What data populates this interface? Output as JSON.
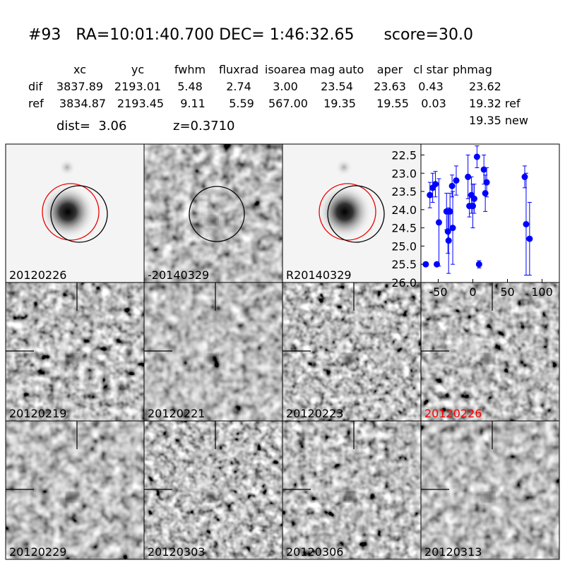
{
  "header": {
    "title": "#93   RA=10:01:40.700 DEC= 1:46:32.65      score=30.0"
  },
  "table": {
    "columns": [
      "xc",
      "yc",
      "fwhm",
      "fluxrad",
      "isoarea",
      "mag auto",
      "aper",
      "cl star",
      "phmag"
    ],
    "rows": [
      [
        "dif",
        "3837.89",
        "2193.01",
        "5.48",
        "2.74",
        "3.00",
        "23.54",
        "23.63",
        "0.43",
        "23.62"
      ],
      [
        "ref",
        "3834.87",
        "2193.45",
        "9.11",
        "5.59",
        "567.00",
        "19.35",
        "19.55",
        "0.03",
        "19.32 ref"
      ]
    ],
    "dist": "dist=  3.06",
    "z": "z=0.3710",
    "new": "19.35 new"
  },
  "panels": [
    {
      "label": "20120226",
      "color": "#000000",
      "kind": "ref"
    },
    {
      "label": "-20140329",
      "color": "#000000",
      "kind": "diff"
    },
    {
      "label": "R20140329",
      "color": "#000000",
      "kind": "ref"
    },
    {
      "label": "20120219",
      "color": "#000000",
      "kind": "noise"
    },
    {
      "label": "20120221",
      "color": "#000000",
      "kind": "noise"
    },
    {
      "label": "20120223",
      "color": "#000000",
      "kind": "noise"
    },
    {
      "label": "20120226",
      "color": "#ff0000",
      "kind": "noise"
    },
    {
      "label": "20120229",
      "color": "#000000",
      "kind": "noise"
    },
    {
      "label": "20120303",
      "color": "#000000",
      "kind": "noise"
    },
    {
      "label": "20120306",
      "color": "#000000",
      "kind": "noise"
    },
    {
      "label": "20120313",
      "color": "#000000",
      "kind": "noise"
    }
  ],
  "chart_data": {
    "type": "errorbar",
    "x": [
      -68,
      -52,
      -62,
      -58,
      -54,
      -49,
      -38,
      -36,
      -35,
      -33,
      -30,
      -29,
      -24,
      -7,
      -5,
      -2,
      0,
      2,
      6,
      9,
      16,
      18,
      20,
      75,
      77,
      82
    ],
    "series": [
      {
        "color": "#0000ff",
        "values": [
          25.5,
          25.5,
          23.6,
          23.4,
          23.3,
          24.35,
          24.05,
          24.6,
          24.85,
          24.05,
          23.35,
          24.5,
          23.2,
          23.1,
          23.9,
          23.6,
          23.9,
          23.7,
          22.55,
          25.5,
          22.9,
          23.55,
          23.25,
          23.1,
          24.4,
          24.8
        ],
        "errors": [
          0,
          0,
          0.35,
          0.4,
          0.35,
          1.2,
          0.5,
          0.6,
          0.9,
          0.5,
          0.3,
          1.0,
          0.4,
          0.6,
          0.3,
          0.5,
          0.6,
          0.4,
          0.3,
          0.1,
          0.4,
          0.5,
          0.4,
          0.3,
          1.4,
          1.0
        ]
      }
    ],
    "xlim": [
      -75,
      125
    ],
    "ylim": [
      26,
      22.2
    ],
    "xticks": [
      -50,
      0,
      50,
      100
    ],
    "yticks": [
      22.5,
      {
        "value": 23,
        "label": "23.0"
      },
      23.5,
      {
        "value": 24,
        "label": "24.0"
      },
      24.5,
      {
        "value": 25,
        "label": "25.0"
      },
      25.5,
      {
        "value": 26,
        "label": "26.0"
      }
    ]
  }
}
